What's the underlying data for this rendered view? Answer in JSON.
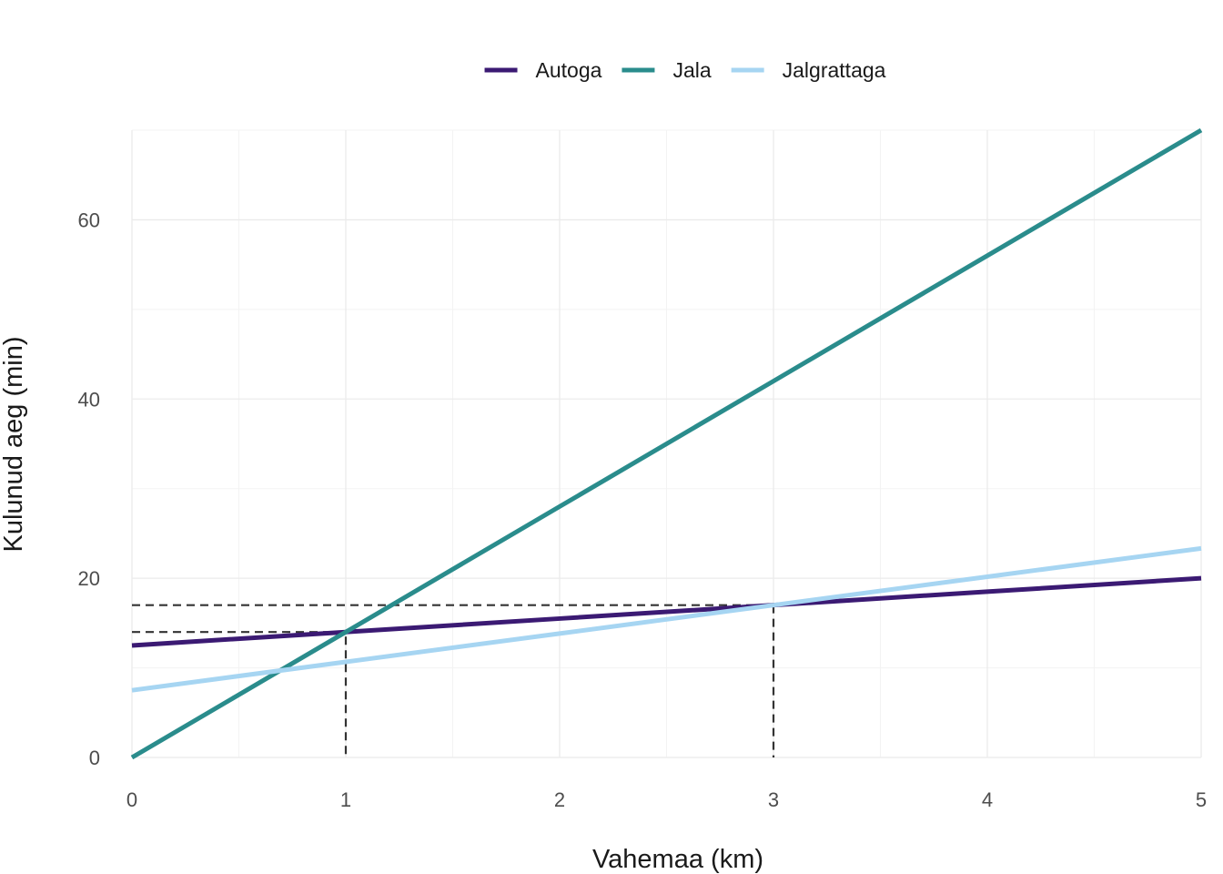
{
  "chart_data": {
    "type": "line",
    "xlabel": "Vahemaa (km)",
    "ylabel": "Kulunud aeg (min)",
    "xlim": [
      0,
      5
    ],
    "ylim": [
      0,
      70
    ],
    "x_ticks": [
      0,
      1,
      2,
      3,
      4,
      5
    ],
    "x_tick_labels": [
      "0",
      "1",
      "2",
      "3",
      "4",
      "5"
    ],
    "y_ticks": [
      0,
      20,
      40,
      60
    ],
    "y_tick_labels": [
      "0",
      "20",
      "40",
      "60"
    ],
    "grid": true,
    "legend_position": "top",
    "x": [
      0,
      1,
      2,
      3,
      4,
      5
    ],
    "series": [
      {
        "name": "Autoga",
        "color": "#3b1a73",
        "values": [
          12.5,
          14,
          15.5,
          17,
          18.5,
          20
        ]
      },
      {
        "name": "Jala",
        "color": "#2a8c8c",
        "values": [
          0,
          14,
          28,
          42,
          56,
          70
        ]
      },
      {
        "name": "Jalgrattaga",
        "color": "#a6d5f2",
        "values": [
          7.5,
          10.67,
          13.83,
          17,
          20.17,
          23.33
        ]
      }
    ],
    "reference_lines": [
      {
        "points": [
          [
            0,
            14
          ],
          [
            1,
            14
          ],
          [
            1,
            0
          ]
        ],
        "style": "dashed",
        "color": "#333333"
      },
      {
        "points": [
          [
            0,
            17
          ],
          [
            3,
            17
          ],
          [
            3,
            0
          ]
        ],
        "style": "dashed",
        "color": "#333333"
      }
    ]
  }
}
